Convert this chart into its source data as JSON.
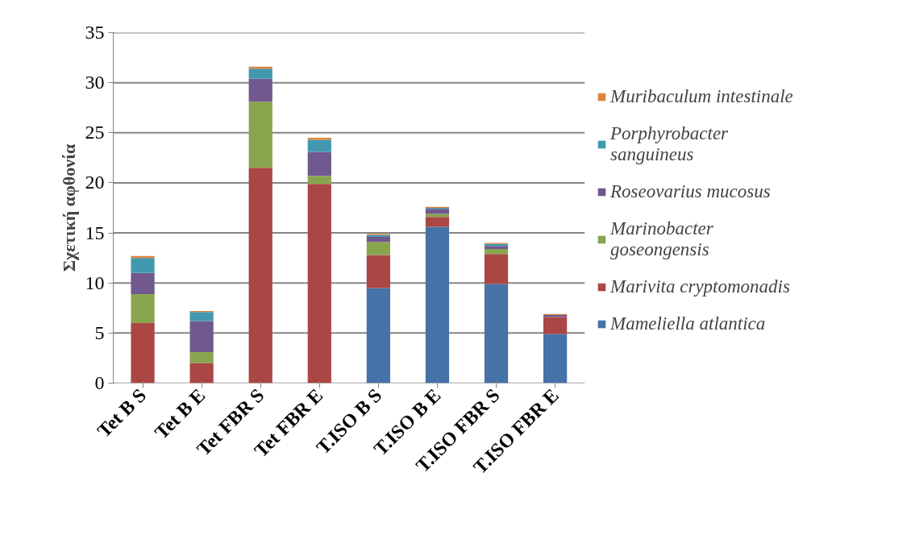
{
  "chart_data": {
    "type": "bar",
    "stacked": true,
    "ylabel": "Σχετική αφθονία",
    "categories": [
      "Tet B S",
      "Tet B E",
      "Tet FBR S",
      "Tet FBR E",
      "T.ISO B S",
      "T.ISO B E",
      "T.ISO FBR S",
      "T.ISO FBR E"
    ],
    "series": [
      {
        "name": "Mameliella atlantica",
        "color": "#4572a7",
        "values": [
          0,
          0,
          0,
          0,
          9.5,
          15.6,
          9.9,
          4.9
        ]
      },
      {
        "name": "Marivita cryptomonadis",
        "color": "#aa4643",
        "values": [
          6.0,
          2.0,
          21.5,
          19.9,
          3.3,
          1.0,
          3.0,
          1.7
        ]
      },
      {
        "name": "Marinobacter goseongensis",
        "color": "#89a54e",
        "values": [
          2.9,
          1.1,
          6.6,
          0.8,
          1.3,
          0.3,
          0.5,
          0
        ]
      },
      {
        "name": "Roseovarius mucosus",
        "color": "#71588f",
        "values": [
          2.1,
          3.1,
          2.3,
          2.4,
          0.5,
          0.5,
          0.3,
          0.2
        ]
      },
      {
        "name": "Porphyrobacter sanguineus",
        "color": "#4198af",
        "values": [
          1.5,
          0.9,
          1.0,
          1.2,
          0.2,
          0.1,
          0.2,
          null
        ]
      },
      {
        "name": "Muribaculum intestinale",
        "color": "#db843d",
        "values": [
          0.2,
          0.1,
          0.2,
          0.2,
          0.1,
          0.1,
          0.1,
          0.1
        ]
      }
    ],
    "ylim": [
      0,
      35
    ],
    "yticks": [
      0,
      5,
      10,
      15,
      20,
      25,
      30,
      35
    ],
    "grid": "y",
    "legend": "right"
  }
}
